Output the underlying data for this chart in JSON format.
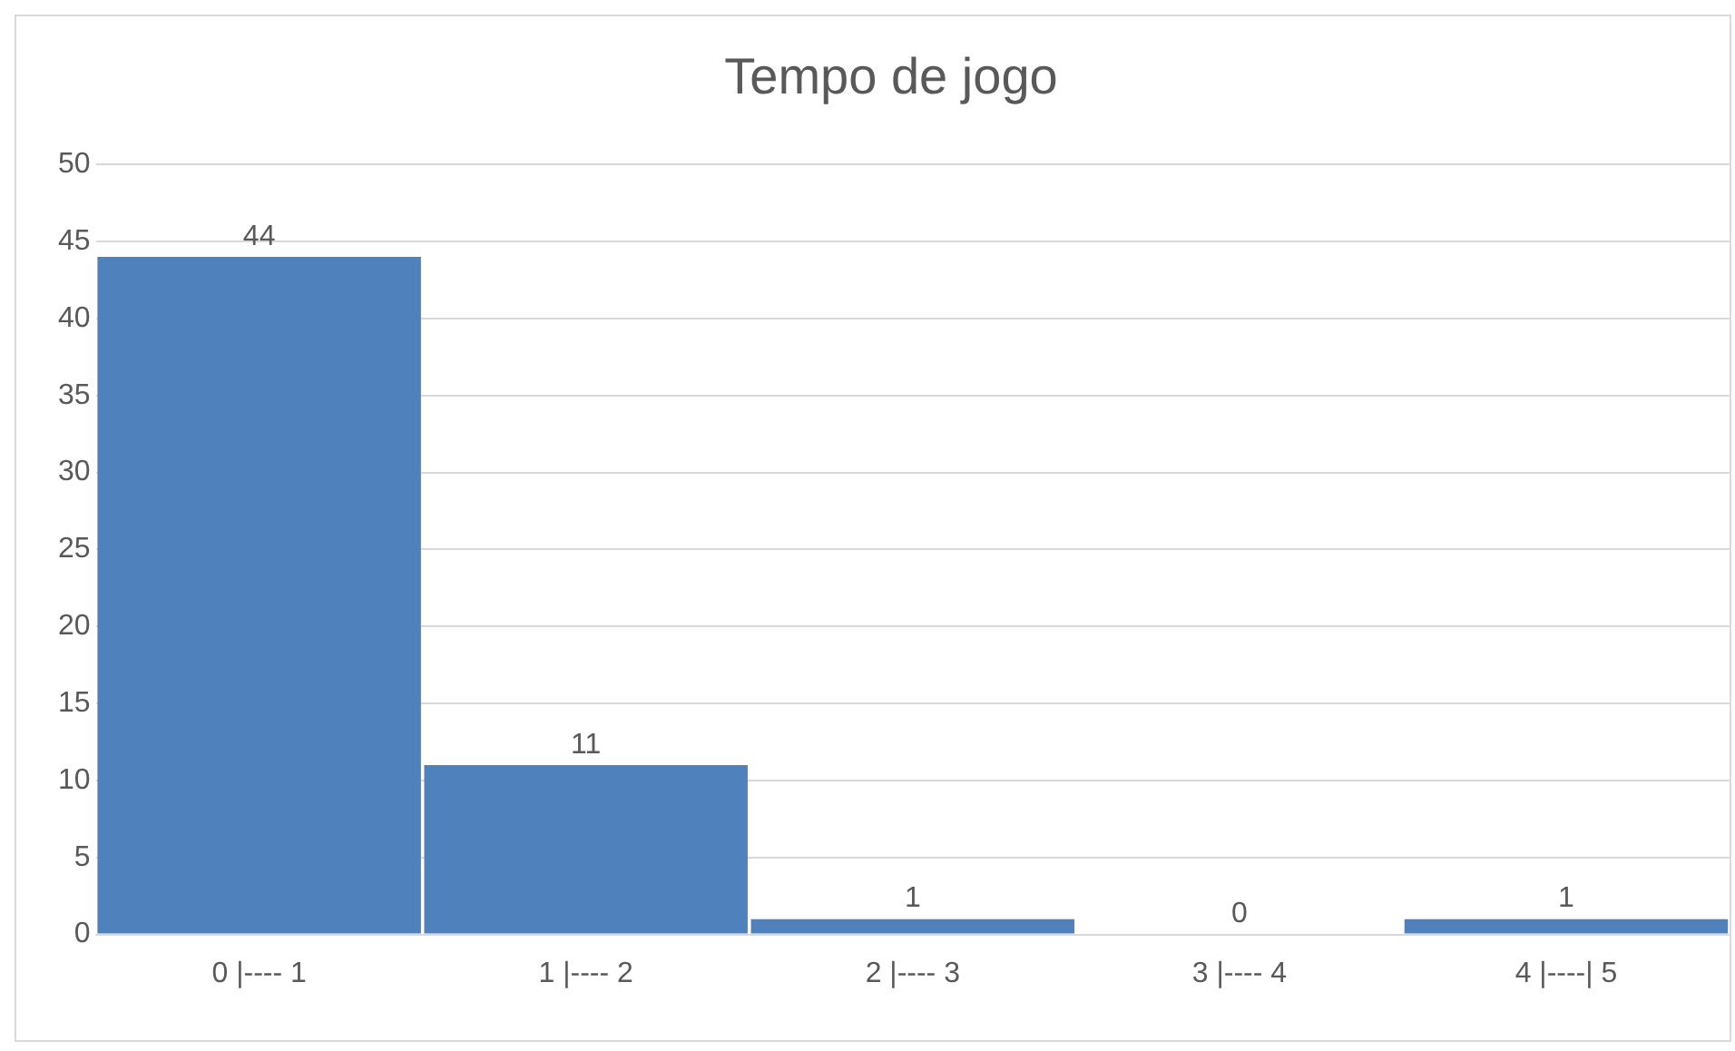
{
  "chart_data": {
    "type": "bar",
    "title": "Tempo de jogo",
    "categories": [
      "0 |---- 1",
      "1 |---- 2",
      "2 |---- 3",
      "3 |---- 4",
      "4 |----| 5"
    ],
    "values": [
      44,
      11,
      1,
      0,
      1
    ],
    "color": "#4f81bd",
    "ylim": [
      0,
      50
    ],
    "yticks": [
      0,
      5,
      10,
      15,
      20,
      25,
      30,
      35,
      40,
      45,
      50
    ],
    "grid": "y",
    "data_labels": true
  }
}
